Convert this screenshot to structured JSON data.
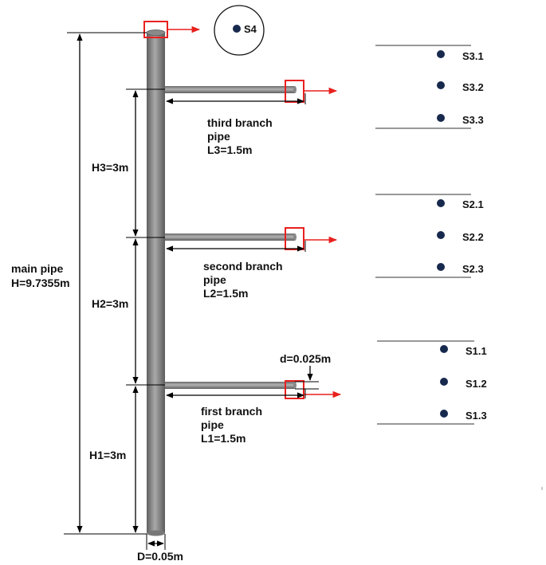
{
  "labels": {
    "main_pipe_line1": "main pipe",
    "main_pipe_line2": "H=9.7355m",
    "h1": "H1=3m",
    "h2": "H2=3m",
    "h3": "H3=3m",
    "diameter_main": "D=0.05m",
    "diameter_branch": "d=0.025m"
  },
  "branches": {
    "third": {
      "line1": "third branch",
      "line2": "pipe",
      "line3": "L3=1.5m"
    },
    "second": {
      "line1": "second branch",
      "line2": "pipe",
      "line3": "L2=1.5m"
    },
    "first": {
      "line1": "first branch",
      "line2": "pipe",
      "line3": "L1=1.5m"
    }
  },
  "sensors": {
    "s4": "S4",
    "s3_1": "S3.1",
    "s3_2": "S3.2",
    "s3_3": "S3.3",
    "s2_1": "S2.1",
    "s2_2": "S2.2",
    "s2_3": "S2.3",
    "s1_1": "S1.1",
    "s1_2": "S1.2",
    "s1_3": "S1.3"
  },
  "colors": {
    "pipe": "#8c8c8c",
    "highlight": "#e8201e",
    "sensor_dot": "#17294d"
  }
}
